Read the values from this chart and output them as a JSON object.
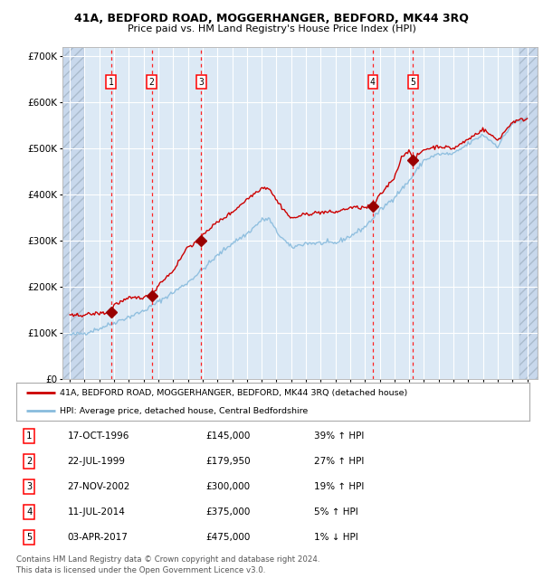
{
  "title": "41A, BEDFORD ROAD, MOGGERHANGER, BEDFORD, MK44 3RQ",
  "subtitle": "Price paid vs. HM Land Registry's House Price Index (HPI)",
  "sale_dates_num": [
    1996.79,
    1999.55,
    2002.9,
    2014.53,
    2017.25
  ],
  "sale_prices": [
    145000,
    179950,
    300000,
    375000,
    475000
  ],
  "sale_labels": [
    "1",
    "2",
    "3",
    "4",
    "5"
  ],
  "legend_line1": "41A, BEDFORD ROAD, MOGGERHANGER, BEDFORD, MK44 3RQ (detached house)",
  "legend_line2": "HPI: Average price, detached house, Central Bedfordshire",
  "table_entries": [
    [
      "1",
      "17-OCT-1996",
      "£145,000",
      "39% ↑ HPI"
    ],
    [
      "2",
      "22-JUL-1999",
      "£179,950",
      "27% ↑ HPI"
    ],
    [
      "3",
      "27-NOV-2002",
      "£300,000",
      "19% ↑ HPI"
    ],
    [
      "4",
      "11-JUL-2014",
      "£375,000",
      "5% ↑ HPI"
    ],
    [
      "5",
      "03-APR-2017",
      "£475,000",
      "1% ↓ HPI"
    ]
  ],
  "footer1": "Contains HM Land Registry data © Crown copyright and database right 2024.",
  "footer2": "This data is licensed under the Open Government Licence v3.0.",
  "bg_color": "#dce9f5",
  "hatch_color": "#c8d8ec",
  "grid_color": "#ffffff",
  "red_line_color": "#cc0000",
  "blue_line_color": "#88bbdd",
  "marker_color": "#990000",
  "dashed_color": "#ff2222",
  "ylim": [
    0,
    720000
  ],
  "yticks": [
    0,
    100000,
    200000,
    300000,
    400000,
    500000,
    600000,
    700000
  ],
  "ytick_labels": [
    "£0",
    "£100K",
    "£200K",
    "£300K",
    "£400K",
    "£500K",
    "£600K",
    "£700K"
  ],
  "xlim_start": 1993.5,
  "xlim_end": 2025.7,
  "hpi_waypoints_x": [
    1994,
    1995,
    1996,
    1997,
    1998,
    1999,
    2000,
    2001,
    2002,
    2003,
    2004,
    2005,
    2006,
    2007,
    2007.5,
    2008,
    2009,
    2010,
    2011,
    2012,
    2013,
    2014,
    2015,
    2016,
    2017,
    2018,
    2019,
    2020,
    2021,
    2022,
    2023,
    2024,
    2025
  ],
  "hpi_waypoints_y": [
    96000,
    100000,
    110000,
    123000,
    135000,
    148000,
    168000,
    188000,
    210000,
    238000,
    268000,
    295000,
    315000,
    345000,
    348000,
    320000,
    285000,
    295000,
    295000,
    295000,
    310000,
    330000,
    365000,
    395000,
    430000,
    475000,
    488000,
    488000,
    510000,
    530000,
    505000,
    555000,
    565000
  ],
  "red_waypoints_x": [
    1994,
    1995,
    1996,
    1996.79,
    1997,
    1998,
    1999,
    1999.55,
    2000,
    2001,
    2002,
    2002.9,
    2003,
    2004,
    2005,
    2006,
    2007,
    2007.5,
    2008,
    2009,
    2010,
    2011,
    2012,
    2013,
    2014,
    2014.53,
    2015,
    2016,
    2016.5,
    2017,
    2017.25,
    2018,
    2019,
    2020,
    2021,
    2022,
    2023,
    2024,
    2025
  ],
  "red_waypoints_y": [
    137000,
    140000,
    143000,
    145000,
    162000,
    175000,
    178000,
    179950,
    205000,
    235000,
    288000,
    300000,
    315000,
    340000,
    362000,
    390000,
    415000,
    415000,
    388000,
    348000,
    358000,
    362000,
    362000,
    372000,
    372000,
    375000,
    398000,
    438000,
    482000,
    498000,
    475000,
    498000,
    505000,
    500000,
    520000,
    542000,
    518000,
    558000,
    565000
  ]
}
